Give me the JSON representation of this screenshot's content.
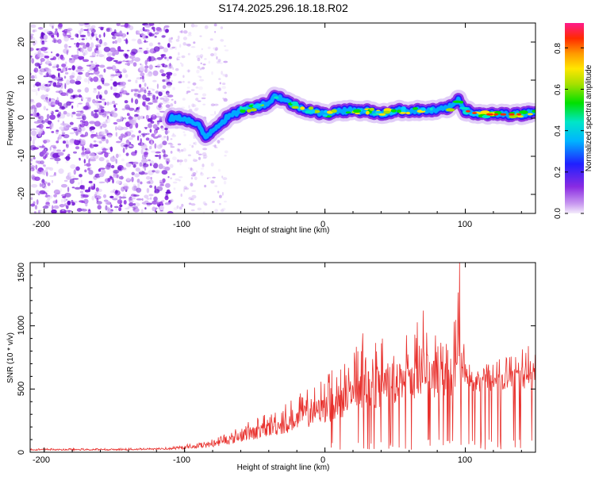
{
  "title": "S174.2025.296.18.18.R02",
  "colors": {
    "snr_line": "#e8302c",
    "frame": "#000000",
    "background": "#ffffff"
  },
  "chart_data": [
    {
      "type": "heatmap",
      "name": "spectrogram",
      "xlabel": "Height of straight line (km)",
      "ylabel": "Frequency (Hz)",
      "xlim": [
        -210,
        150
      ],
      "ylim": [
        -25,
        25
      ],
      "xticks": [
        "-200",
        "-100",
        "0",
        "100"
      ],
      "yticks": [
        "20",
        "10",
        "0",
        "-10",
        "-20"
      ],
      "colorbar": {
        "label": "Normalized spectral amplitude",
        "range": [
          0.0,
          0.92
        ],
        "ticks": [
          "0.0",
          "0.2",
          "0.4",
          "0.6",
          "0.8"
        ]
      },
      "ridge": {
        "x": [
          -110,
          -100,
          -90,
          -85,
          -80,
          -70,
          -60,
          -50,
          -40,
          -35,
          -30,
          -20,
          -10,
          0,
          10,
          20,
          30,
          40,
          50,
          60,
          70,
          80,
          90,
          95,
          100,
          110,
          120,
          130,
          140,
          150
        ],
        "y": [
          0,
          0,
          -2,
          -5,
          -3,
          0,
          2,
          3,
          4,
          6,
          5,
          3,
          2,
          1,
          2,
          2,
          2,
          1,
          2,
          2,
          2,
          2,
          3,
          5,
          2,
          1,
          1,
          1,
          1,
          2
        ]
      }
    },
    {
      "type": "line",
      "name": "snr",
      "xlabel": "Height of straight line (km)",
      "ylabel": "SNR (10 * v/v)",
      "xlim": [
        -210,
        150
      ],
      "ylim": [
        0,
        1500
      ],
      "xticks": [
        "-200",
        "-100",
        "0",
        "100"
      ],
      "yticks": [
        "1500",
        "1000",
        "500",
        "0"
      ],
      "envelope": {
        "x": [
          -210,
          -150,
          -110,
          -100,
          -90,
          -80,
          -70,
          -60,
          -50,
          -40,
          -30,
          -20,
          -10,
          0,
          10,
          20,
          30,
          40,
          50,
          60,
          70,
          80,
          90,
          95,
          100,
          110,
          120,
          130,
          140,
          150
        ],
        "base": [
          15,
          15,
          20,
          25,
          30,
          40,
          60,
          80,
          100,
          120,
          140,
          170,
          200,
          230,
          260,
          300,
          330,
          360,
          390,
          400,
          420,
          430,
          440,
          440,
          460,
          480,
          480,
          490,
          500,
          520
        ],
        "peak": [
          30,
          30,
          40,
          60,
          80,
          110,
          160,
          200,
          280,
          330,
          380,
          450,
          520,
          600,
          700,
          820,
          900,
          900,
          920,
          940,
          1120,
          920,
          880,
          1500,
          760,
          700,
          720,
          760,
          820,
          780
        ]
      },
      "spikes": [
        {
          "x": 96,
          "y": 1500
        },
        {
          "x": 70,
          "y": 1120
        },
        {
          "x": 64,
          "y": 930
        },
        {
          "x": 27,
          "y": 940
        },
        {
          "x": 145,
          "y": 840
        }
      ]
    }
  ]
}
